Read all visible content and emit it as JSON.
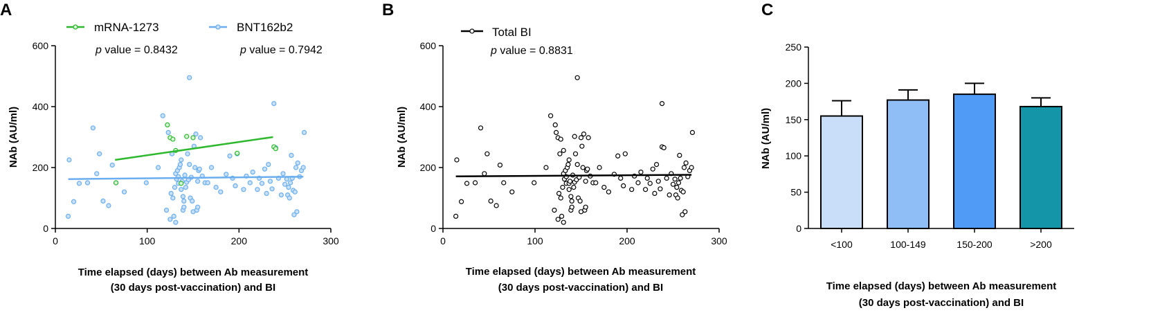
{
  "panels": {
    "a": {
      "letter": "A"
    },
    "b": {
      "letter": "B"
    },
    "c": {
      "letter": "C"
    }
  },
  "colors": {
    "mrna": "#2db82d",
    "bnt": "#6aaef0",
    "bnt_fill": "#c8e0fa",
    "total": "#000000",
    "bars": [
      "#c9def8",
      "#8fbdf5",
      "#4f9bf5",
      "#1496a8"
    ]
  },
  "chart_data": [
    {
      "id": "A",
      "type": "scatter",
      "xlabel_line1": "Time elapsed (days) between Ab measurement",
      "xlabel_line2": "(30 days post-vaccination) and BI",
      "ylabel": "NAb (AU/ml)",
      "xlim": [
        0,
        300
      ],
      "ylim": [
        0,
        600
      ],
      "xticks": [
        0,
        100,
        200,
        300
      ],
      "yticks": [
        0,
        200,
        400,
        600
      ],
      "legend": [
        "mRNA-1273",
        "BNT162b2"
      ],
      "pvalues": [
        {
          "label": "p",
          "text": " value = 0.8432"
        },
        {
          "label": "p",
          "text": " value = 0.7942"
        }
      ],
      "series": [
        {
          "name": "mRNA-1273",
          "fit": [
            [
              65,
              225
            ],
            [
              237,
              300
            ]
          ],
          "points": [
            [
              66,
              150
            ],
            [
              122,
              340
            ],
            [
              125,
              298
            ],
            [
              128,
              293
            ],
            [
              131,
              256
            ],
            [
              137,
              148
            ],
            [
              143,
              302
            ],
            [
              150,
              298
            ],
            [
              198,
              247
            ],
            [
              238,
              268
            ],
            [
              240,
              262
            ]
          ]
        },
        {
          "name": "BNT162b2",
          "fit": [
            [
              14,
              162
            ],
            [
              270,
              170
            ]
          ],
          "points": [
            [
              14,
              40
            ],
            [
              15,
              225
            ],
            [
              20,
              88
            ],
            [
              26,
              148
            ],
            [
              35,
              150
            ],
            [
              41,
              330
            ],
            [
              45,
              180
            ],
            [
              48,
              245
            ],
            [
              52,
              90
            ],
            [
              58,
              75
            ],
            [
              62,
              208
            ],
            [
              66,
              150
            ],
            [
              75,
              120
            ],
            [
              99,
              150
            ],
            [
              112,
              200
            ],
            [
              117,
              370
            ],
            [
              121,
              60
            ],
            [
              123,
              315
            ],
            [
              125,
              30
            ],
            [
              126,
              115
            ],
            [
              127,
              245
            ],
            [
              128,
              100
            ],
            [
              129,
              40
            ],
            [
              130,
              135
            ],
            [
              131,
              20
            ],
            [
              131,
              180
            ],
            [
              132,
              162
            ],
            [
              133,
              190
            ],
            [
              134,
              148
            ],
            [
              134,
              170
            ],
            [
              135,
              200
            ],
            [
              136,
              210
            ],
            [
              137,
              225
            ],
            [
              137,
              128
            ],
            [
              138,
              155
            ],
            [
              139,
              105
            ],
            [
              139,
              60
            ],
            [
              140,
              70
            ],
            [
              140,
              90
            ],
            [
              141,
              175
            ],
            [
              142,
              135
            ],
            [
              143,
              152
            ],
            [
              144,
              245
            ],
            [
              145,
              160
            ],
            [
              146,
              495
            ],
            [
              146,
              210
            ],
            [
              147,
              100
            ],
            [
              148,
              168
            ],
            [
              149,
              90
            ],
            [
              150,
              55
            ],
            [
              151,
              270
            ],
            [
              152,
              200
            ],
            [
              153,
              310
            ],
            [
              154,
              60
            ],
            [
              155,
              70
            ],
            [
              155,
              155
            ],
            [
              156,
              190
            ],
            [
              157,
              195
            ],
            [
              158,
              298
            ],
            [
              160,
              172
            ],
            [
              163,
              150
            ],
            [
              166,
              150
            ],
            [
              170,
              200
            ],
            [
              175,
              135
            ],
            [
              180,
              120
            ],
            [
              186,
              178
            ],
            [
              190,
              238
            ],
            [
              193,
              165
            ],
            [
              196,
              140
            ],
            [
              198,
              245
            ],
            [
              205,
              128
            ],
            [
              208,
              172
            ],
            [
              212,
              150
            ],
            [
              215,
              185
            ],
            [
              220,
              128
            ],
            [
              222,
              165
            ],
            [
              225,
              148
            ],
            [
              228,
              195
            ],
            [
              230,
              115
            ],
            [
              232,
              210
            ],
            [
              234,
              155
            ],
            [
              236,
              130
            ],
            [
              238,
              410
            ],
            [
              240,
              265
            ],
            [
              243,
              165
            ],
            [
              246,
              110
            ],
            [
              248,
              180
            ],
            [
              250,
              145
            ],
            [
              252,
              162
            ],
            [
              253,
              110
            ],
            [
              254,
              135
            ],
            [
              255,
              100
            ],
            [
              256,
              150
            ],
            [
              257,
              240
            ],
            [
              258,
              165
            ],
            [
              259,
              125
            ],
            [
              260,
              45
            ],
            [
              261,
              120
            ],
            [
              262,
              200
            ],
            [
              263,
              55
            ],
            [
              264,
              215
            ],
            [
              266,
              170
            ],
            [
              268,
              190
            ],
            [
              270,
              200
            ],
            [
              271,
              315
            ]
          ]
        }
      ]
    },
    {
      "id": "B",
      "type": "scatter",
      "xlabel_line1": "Time elapsed (days) between Ab measurement",
      "xlabel_line2": "(30 days post-vaccination) and BI",
      "ylabel": "NAb (AU/ml)",
      "xlim": [
        0,
        300
      ],
      "ylim": [
        0,
        600
      ],
      "xticks": [
        0,
        100,
        200,
        300
      ],
      "yticks": [
        0,
        200,
        400,
        600
      ],
      "legend": [
        "Total BI"
      ],
      "pvalues": [
        {
          "label": "p",
          "text": " value = 0.8831"
        }
      ],
      "series": [
        {
          "name": "Total BI",
          "fit": [
            [
              14,
              171
            ],
            [
              270,
              176
            ]
          ],
          "points": [
            [
              14,
              40
            ],
            [
              15,
              225
            ],
            [
              20,
              88
            ],
            [
              26,
              148
            ],
            [
              35,
              150
            ],
            [
              41,
              330
            ],
            [
              45,
              180
            ],
            [
              48,
              245
            ],
            [
              52,
              90
            ],
            [
              58,
              75
            ],
            [
              62,
              208
            ],
            [
              66,
              150
            ],
            [
              75,
              120
            ],
            [
              99,
              150
            ],
            [
              112,
              200
            ],
            [
              117,
              370
            ],
            [
              121,
              60
            ],
            [
              122,
              340
            ],
            [
              123,
              315
            ],
            [
              125,
              30
            ],
            [
              125,
              298
            ],
            [
              126,
              115
            ],
            [
              127,
              245
            ],
            [
              128,
              100
            ],
            [
              128,
              293
            ],
            [
              129,
              40
            ],
            [
              130,
              135
            ],
            [
              131,
              20
            ],
            [
              131,
              256
            ],
            [
              131,
              180
            ],
            [
              132,
              162
            ],
            [
              133,
              190
            ],
            [
              134,
              148
            ],
            [
              134,
              170
            ],
            [
              135,
              200
            ],
            [
              136,
              210
            ],
            [
              137,
              225
            ],
            [
              137,
              128
            ],
            [
              137,
              148
            ],
            [
              138,
              155
            ],
            [
              139,
              105
            ],
            [
              139,
              60
            ],
            [
              140,
              70
            ],
            [
              140,
              90
            ],
            [
              141,
              175
            ],
            [
              142,
              135
            ],
            [
              143,
              152
            ],
            [
              143,
              302
            ],
            [
              144,
              245
            ],
            [
              145,
              160
            ],
            [
              146,
              495
            ],
            [
              146,
              210
            ],
            [
              147,
              100
            ],
            [
              148,
              168
            ],
            [
              149,
              90
            ],
            [
              150,
              55
            ],
            [
              150,
              298
            ],
            [
              151,
              270
            ],
            [
              152,
              200
            ],
            [
              153,
              310
            ],
            [
              154,
              60
            ],
            [
              155,
              70
            ],
            [
              155,
              155
            ],
            [
              156,
              190
            ],
            [
              157,
              195
            ],
            [
              158,
              298
            ],
            [
              160,
              172
            ],
            [
              163,
              150
            ],
            [
              166,
              150
            ],
            [
              170,
              200
            ],
            [
              175,
              135
            ],
            [
              180,
              120
            ],
            [
              186,
              178
            ],
            [
              190,
              238
            ],
            [
              193,
              165
            ],
            [
              196,
              140
            ],
            [
              198,
              245
            ],
            [
              205,
              128
            ],
            [
              208,
              172
            ],
            [
              212,
              150
            ],
            [
              215,
              185
            ],
            [
              220,
              128
            ],
            [
              222,
              165
            ],
            [
              225,
              148
            ],
            [
              228,
              195
            ],
            [
              230,
              115
            ],
            [
              232,
              210
            ],
            [
              234,
              155
            ],
            [
              236,
              130
            ],
            [
              238,
              410
            ],
            [
              238,
              268
            ],
            [
              240,
              265
            ],
            [
              243,
              165
            ],
            [
              246,
              110
            ],
            [
              248,
              180
            ],
            [
              250,
              145
            ],
            [
              252,
              162
            ],
            [
              253,
              110
            ],
            [
              254,
              135
            ],
            [
              255,
              100
            ],
            [
              256,
              150
            ],
            [
              257,
              240
            ],
            [
              258,
              165
            ],
            [
              259,
              125
            ],
            [
              260,
              45
            ],
            [
              261,
              120
            ],
            [
              262,
              200
            ],
            [
              263,
              55
            ],
            [
              264,
              215
            ],
            [
              266,
              170
            ],
            [
              268,
              190
            ],
            [
              270,
              200
            ],
            [
              271,
              315
            ]
          ]
        }
      ]
    },
    {
      "id": "C",
      "type": "bar",
      "xlabel_line1": "Time elapsed (days) between Ab measurement",
      "xlabel_line2": "(30 days post-vaccination) and BI",
      "ylabel": "NAb (AU/ml)",
      "ylim": [
        0,
        250
      ],
      "yticks": [
        0,
        50,
        100,
        150,
        200,
        250
      ],
      "categories": [
        "<100",
        "100-149",
        "150-200",
        ">200"
      ],
      "values": [
        155,
        177,
        185,
        168
      ],
      "errors": [
        21,
        14,
        15,
        12
      ]
    }
  ]
}
